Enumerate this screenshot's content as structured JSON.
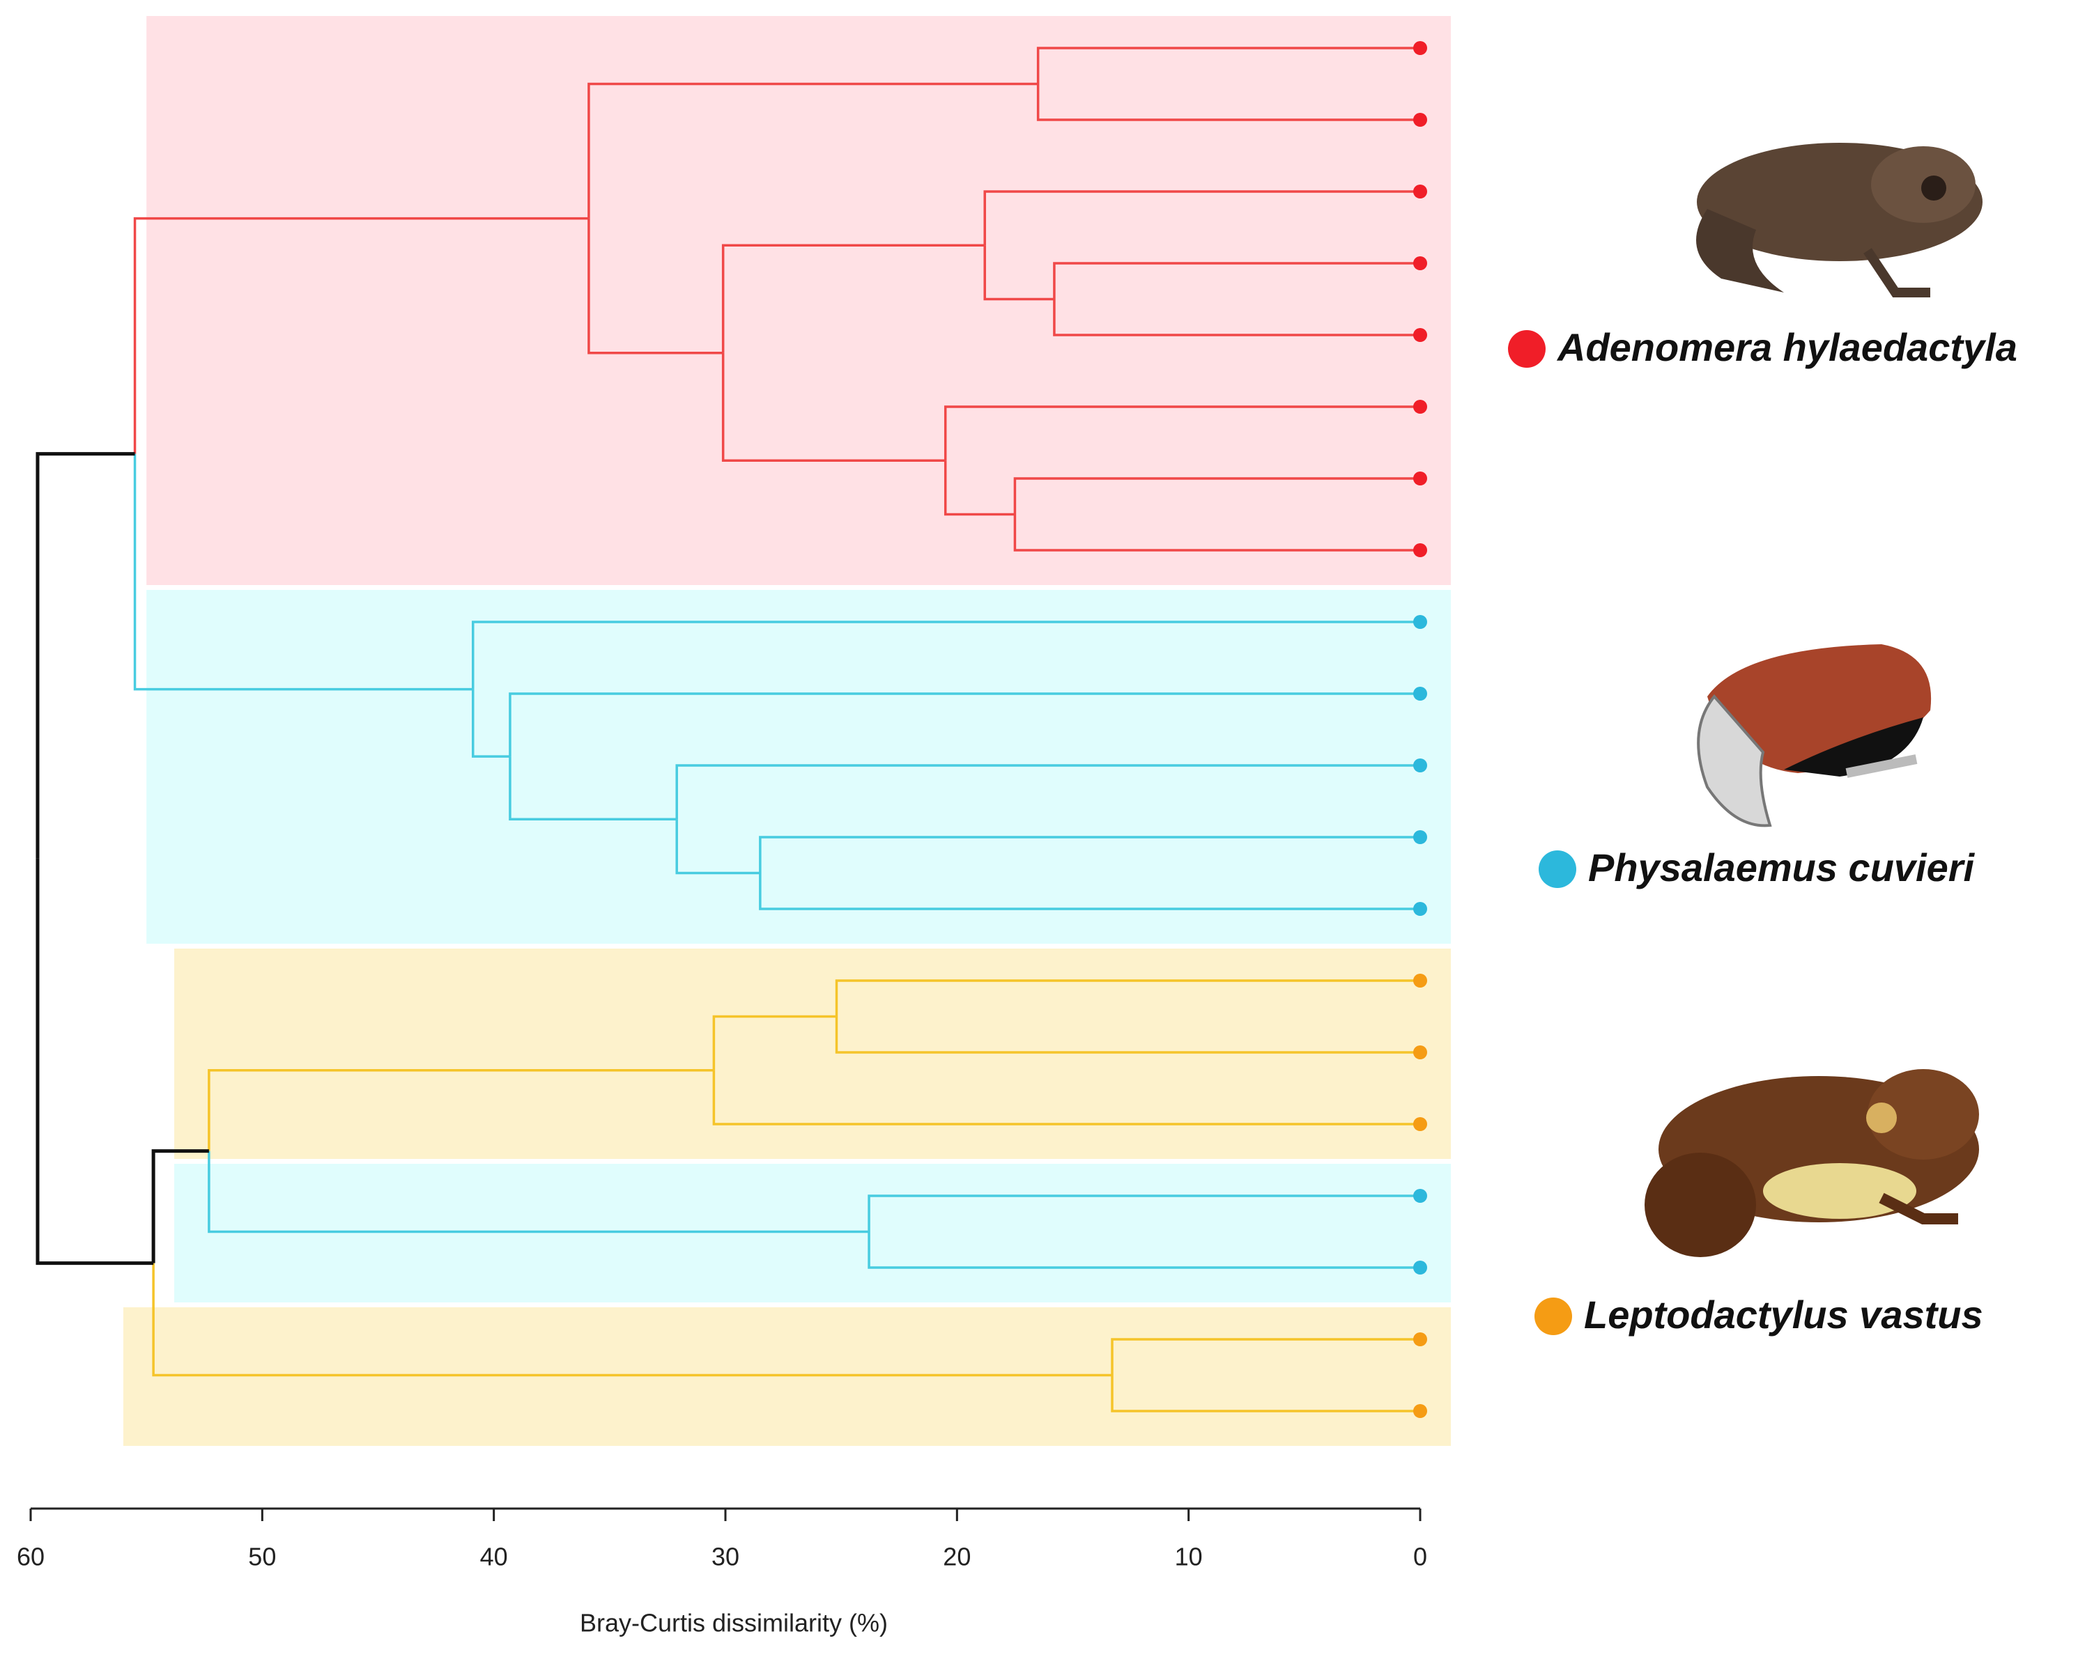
{
  "chart_data": {
    "type": "dendrogram",
    "x_label": "Bray-Curtis dissimilarity (%)",
    "xlim": [
      60,
      0
    ],
    "xticks": [
      60,
      50,
      40,
      30,
      20,
      10,
      0
    ],
    "leaf_values": [
      0,
      0,
      0,
      0,
      0,
      0,
      0,
      0,
      0,
      0,
      0,
      0,
      0,
      0,
      0,
      0,
      0,
      0,
      0,
      0
    ],
    "leaf_colors": [
      "#f01e28",
      "#f01e28",
      "#f01e28",
      "#f01e28",
      "#f01e28",
      "#f01e28",
      "#f01e28",
      "#f01e28",
      "#2cb8dc",
      "#2cb8dc",
      "#2cb8dc",
      "#2cb8dc",
      "#2cb8dc",
      "#f59c14",
      "#f59c14",
      "#f59c14",
      "#2cb8dc",
      "#2cb8dc",
      "#f59c14",
      "#f59c14"
    ],
    "leaf_link_colors": [
      "#f04848",
      "#f04848",
      "#f04848",
      "#f04848",
      "#f04848",
      "#f04848",
      "#f04848",
      "#f04848",
      "#48cce0",
      "#48cce0",
      "#48cce0",
      "#48cce0",
      "#48cce0",
      "#f5c42a",
      "#f5c42a",
      "#f5c42a",
      "#48cce0",
      "#48cce0",
      "#f5c42a",
      "#f5c42a"
    ],
    "merges": [
      {
        "height": 16.5,
        "children": [
          "L0",
          "L1"
        ],
        "color": "#f04848"
      },
      {
        "height": 15.8,
        "children": [
          "L3",
          "L4"
        ],
        "color": "#f04848"
      },
      {
        "height": 18.8,
        "children": [
          "L2",
          "M1"
        ],
        "color": "#f04848"
      },
      {
        "height": 17.5,
        "children": [
          "L6",
          "L7"
        ],
        "color": "#f04848"
      },
      {
        "height": 20.5,
        "children": [
          "L5",
          "M3"
        ],
        "color": "#f04848"
      },
      {
        "height": 30.1,
        "children": [
          "M2",
          "M4"
        ],
        "color": "#f04848"
      },
      {
        "height": 35.9,
        "children": [
          "M0",
          "M5"
        ],
        "color": "#f04848"
      },
      {
        "height": 28.5,
        "children": [
          "L11",
          "L12"
        ],
        "color": "#48cce0"
      },
      {
        "height": 32.1,
        "children": [
          "L10",
          "M7"
        ],
        "color": "#48cce0"
      },
      {
        "height": 39.3,
        "children": [
          "L9",
          "M8"
        ],
        "color": "#48cce0"
      },
      {
        "height": 40.9,
        "children": [
          "L8",
          "M9"
        ],
        "color": "#48cce0"
      },
      {
        "height": 55.5,
        "children": [
          "M6",
          "M10"
        ],
        "color": "#111111"
      },
      {
        "height": 25.2,
        "children": [
          "L13",
          "L14"
        ],
        "color": "#f5c42a"
      },
      {
        "height": 30.5,
        "children": [
          "L15",
          "M12"
        ],
        "color": "#f5c42a"
      },
      {
        "height": 23.8,
        "children": [
          "L16",
          "L17"
        ],
        "color": "#48cce0"
      },
      {
        "height": 52.3,
        "children": [
          "M13",
          "M14"
        ],
        "color": "#111111"
      },
      {
        "height": 13.3,
        "children": [
          "L18",
          "L19"
        ],
        "color": "#f5c42a"
      },
      {
        "height": 54.7,
        "children": [
          "M15",
          "M16"
        ],
        "color": "#111111"
      },
      {
        "height": 59.7,
        "children": [
          "M11",
          "M17"
        ],
        "color": "#111111"
      }
    ],
    "bands": [
      {
        "first": 0,
        "last": 7,
        "from": 55.0,
        "color": "#ffe1e5"
      },
      {
        "first": 8,
        "last": 12,
        "from": 55.0,
        "color": "#e0fdfd"
      },
      {
        "first": 13,
        "last": 15,
        "from": 53.8,
        "color": "#fdf2cc"
      },
      {
        "first": 16,
        "last": 17,
        "from": 53.8,
        "color": "#e0fdfd"
      },
      {
        "first": 18,
        "last": 19,
        "from": 56.0,
        "color": "#fdf2cc"
      }
    ],
    "legend": [
      {
        "name": "Adenomera hylaedactyla",
        "color": "#f01e28"
      },
      {
        "name": "Physalaemus cuvieri",
        "color": "#2cb8dc"
      },
      {
        "name": "Leptodactylus vastus",
        "color": "#f59c14"
      }
    ]
  }
}
